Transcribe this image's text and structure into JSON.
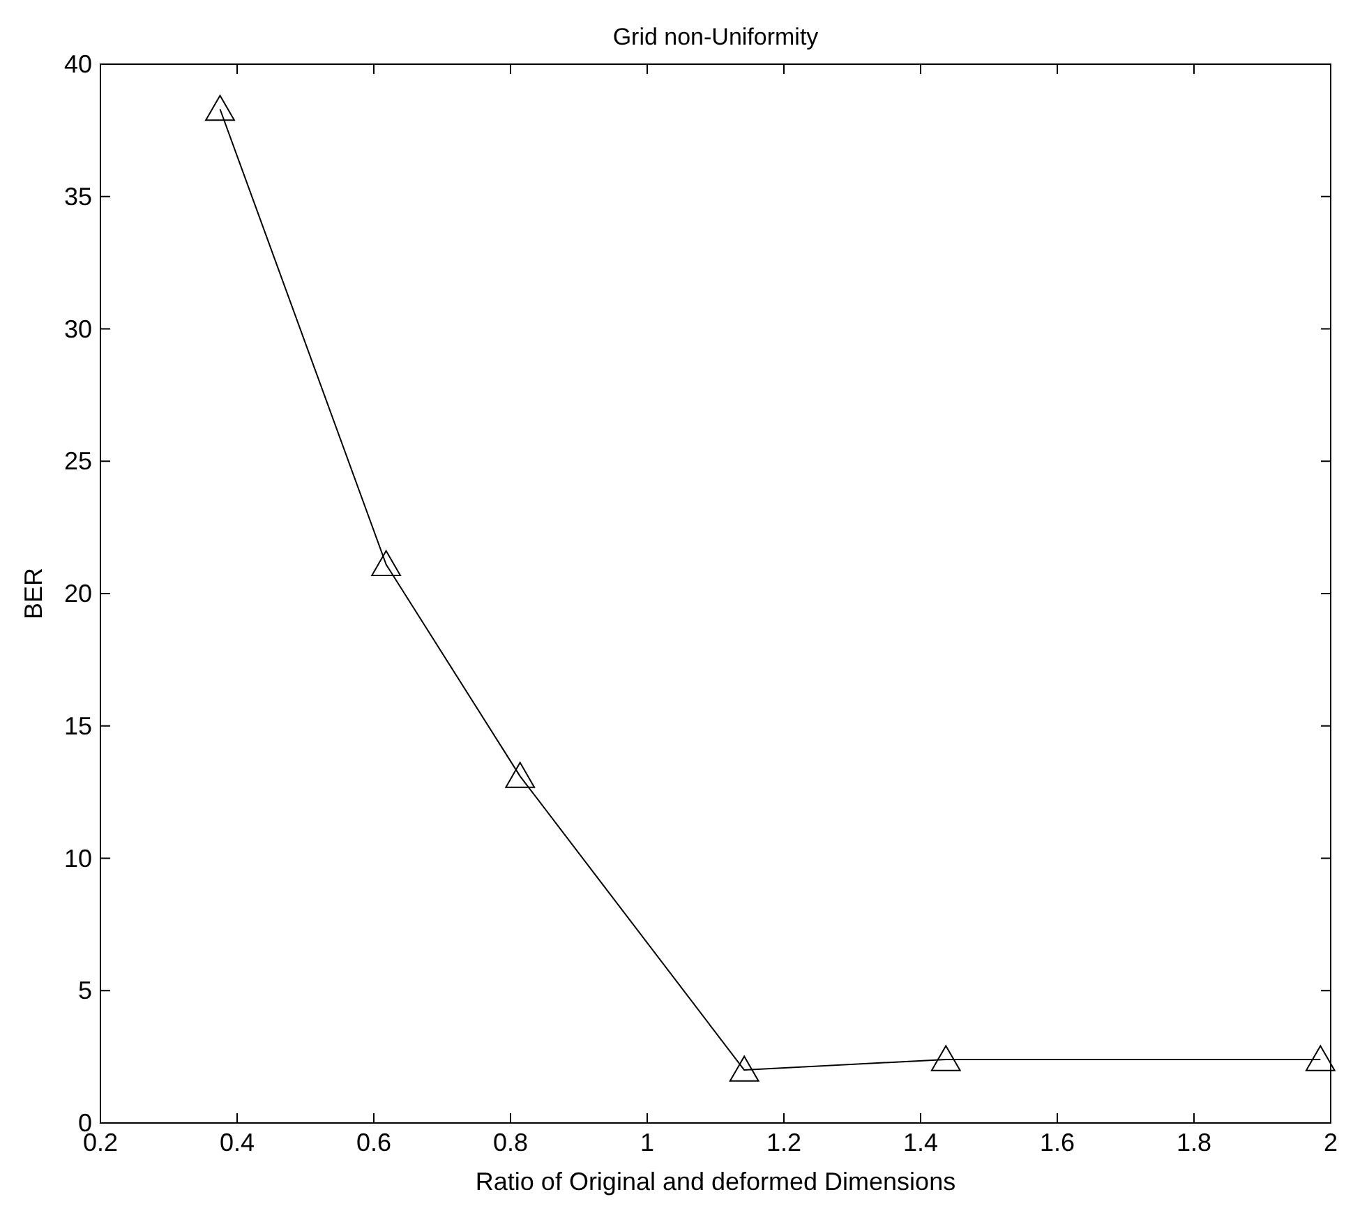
{
  "chart_data": {
    "type": "line",
    "title": "Grid non-Uniformity",
    "xlabel": "Ratio of Original and deformed Dimensions",
    "ylabel": "BER",
    "x": [
      0.375,
      0.618,
      0.814,
      1.142,
      1.437,
      1.985
    ],
    "series": [
      {
        "color": "#000000",
        "values": [
          38.3,
          21.1,
          13.1,
          2.0,
          2.4,
          2.4
        ]
      }
    ],
    "xlim": [
      0.2,
      2
    ],
    "xticks": [
      0.2,
      0.4,
      0.6,
      0.8,
      1,
      1.2,
      1.4,
      1.6,
      1.8,
      2
    ],
    "ylim": [
      0,
      40
    ],
    "yticks": [
      0,
      5,
      10,
      15,
      20,
      25,
      30,
      35,
      40
    ],
    "marker": "triangle",
    "line_style": "solid"
  }
}
